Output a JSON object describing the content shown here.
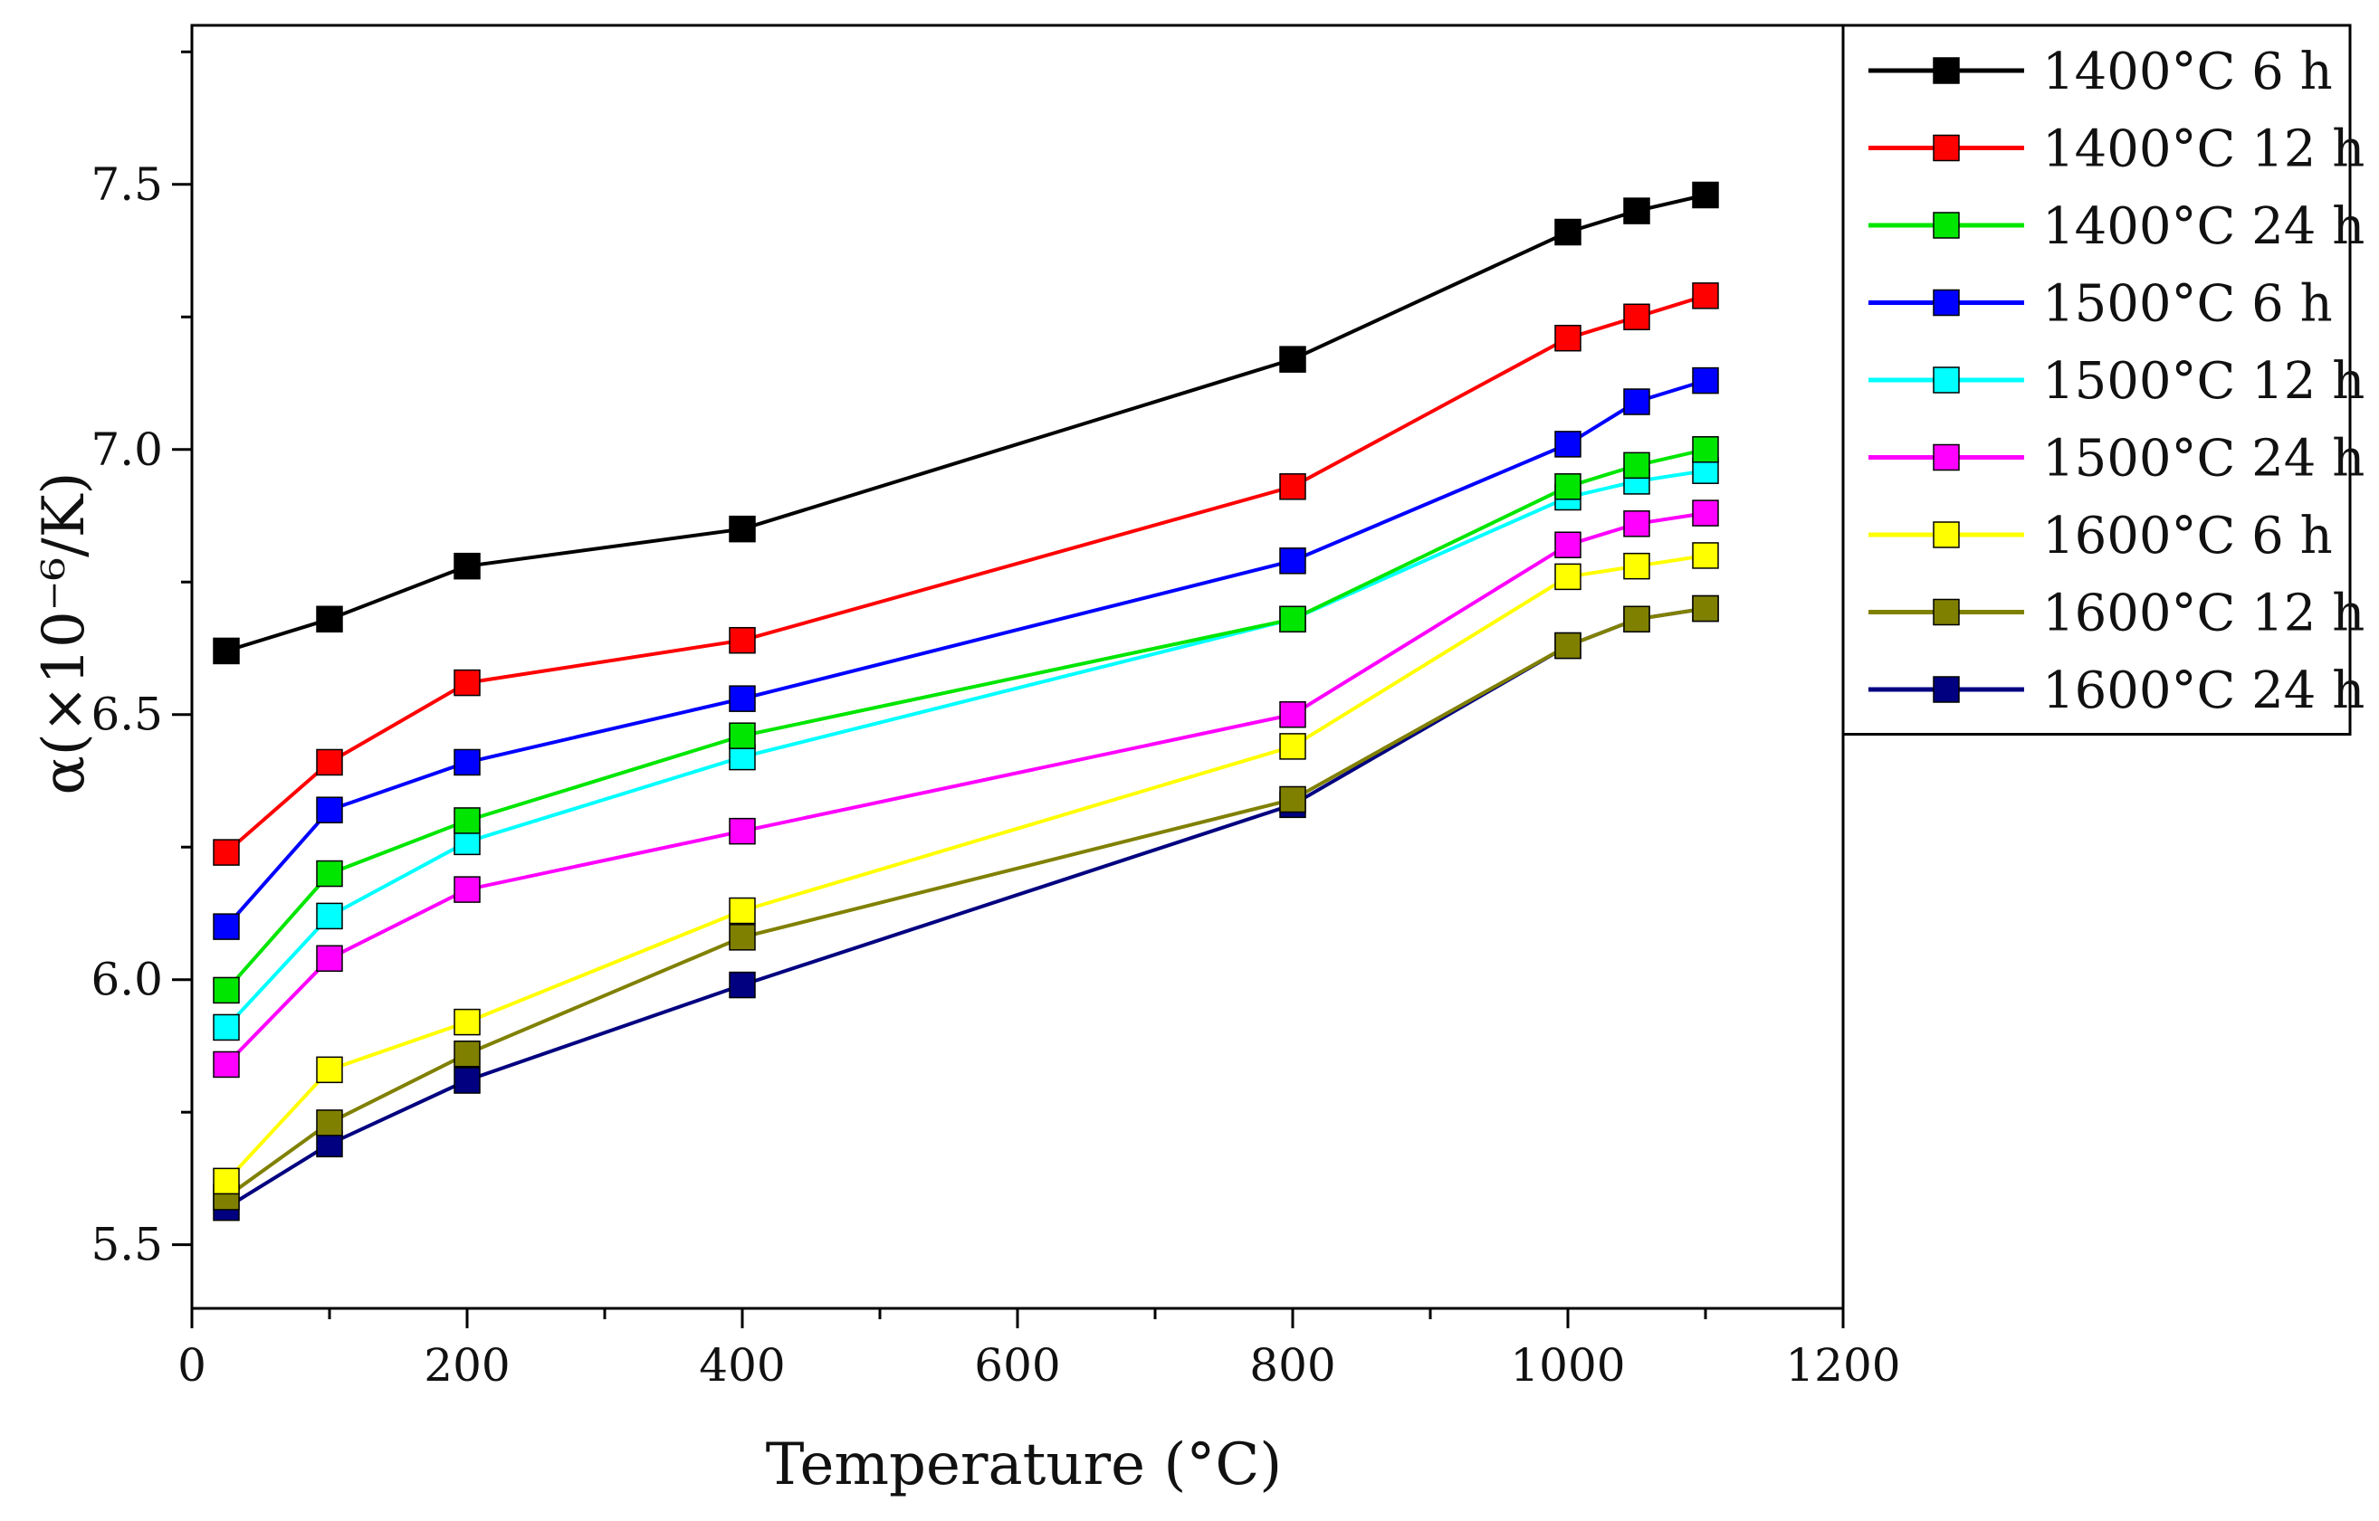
{
  "chart_data": {
    "type": "line",
    "title": "",
    "xlabel": "Temperature (°C)",
    "ylabel": "α(×10⁻⁶/K)",
    "xlim": [
      0,
      1200
    ],
    "ylim": [
      5.38,
      7.8
    ],
    "xticks": [
      0,
      200,
      400,
      600,
      800,
      1000,
      1200
    ],
    "xtick_labels": [
      "0",
      "200",
      "400",
      "600",
      "800",
      "1000",
      "1200"
    ],
    "yticks": [
      5.5,
      6.0,
      6.5,
      7.0,
      7.5
    ],
    "ytick_labels": [
      "5.5",
      "6.0",
      "6.5",
      "7.0",
      "7.5"
    ],
    "grid": false,
    "legend_position": "top-right",
    "marker": "square",
    "x": [
      25,
      100,
      200,
      400,
      800,
      1000,
      1050,
      1100
    ],
    "series": [
      {
        "name": "1400°C 6 h",
        "color": "#000000",
        "values": [
          6.62,
          6.68,
          6.78,
          6.85,
          7.17,
          7.41,
          7.45,
          7.48
        ]
      },
      {
        "name": "1400°C 12 h",
        "color": "#ff0000",
        "values": [
          6.24,
          6.41,
          6.56,
          6.64,
          6.93,
          7.21,
          7.25,
          7.29
        ]
      },
      {
        "name": "1400°C 24 h",
        "color": "#00e600",
        "values": [
          5.98,
          6.2,
          6.3,
          6.46,
          6.68,
          6.93,
          6.97,
          7.0
        ]
      },
      {
        "name": "1500°C 6 h",
        "color": "#0000ff",
        "values": [
          6.1,
          6.32,
          6.41,
          6.53,
          6.79,
          7.01,
          7.09,
          7.13
        ]
      },
      {
        "name": "1500°C 12 h",
        "color": "#00ffff",
        "values": [
          5.91,
          6.12,
          6.26,
          6.42,
          6.68,
          6.91,
          6.94,
          6.96
        ]
      },
      {
        "name": "1500°C 24 h",
        "color": "#ff00ff",
        "values": [
          5.84,
          6.04,
          6.17,
          6.28,
          6.5,
          6.82,
          6.86,
          6.88
        ]
      },
      {
        "name": "1600°C 6 h",
        "color": "#ffff00",
        "values": [
          5.62,
          5.83,
          5.92,
          6.13,
          6.44,
          6.76,
          6.78,
          6.8
        ]
      },
      {
        "name": "1600°C 12 h",
        "color": "#808000",
        "values": [
          5.59,
          5.73,
          5.86,
          6.08,
          6.34,
          6.63,
          6.68,
          6.7
        ]
      },
      {
        "name": "1600°C 24 h",
        "color": "#000080",
        "values": [
          5.57,
          5.69,
          5.81,
          5.99,
          6.33,
          6.63,
          6.68,
          6.7
        ]
      }
    ]
  }
}
